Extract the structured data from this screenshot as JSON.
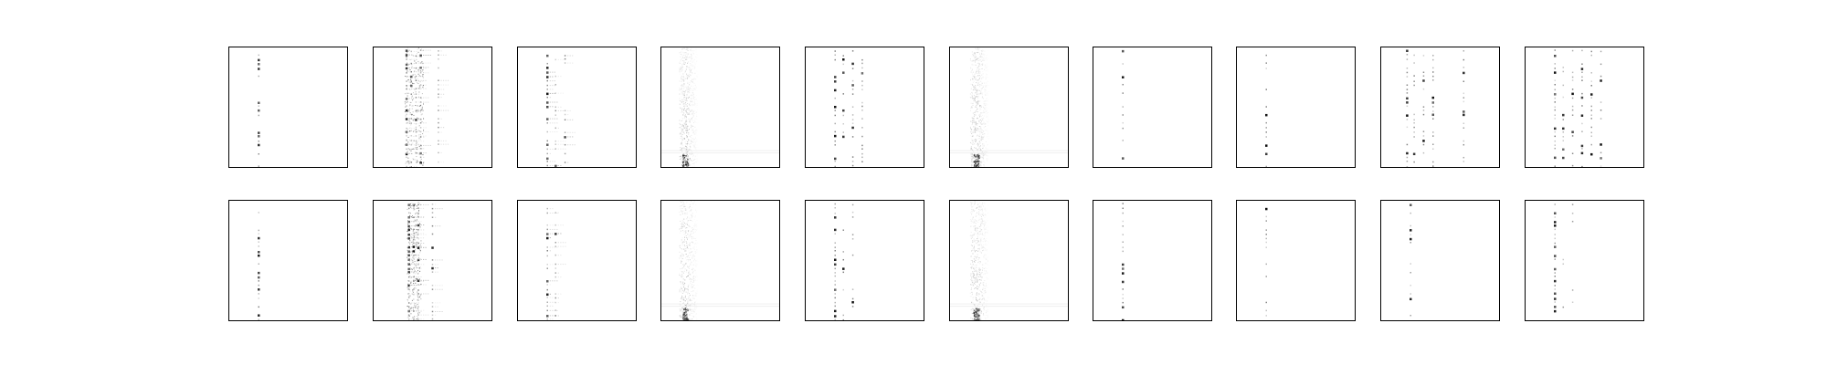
{
  "chart_data": {
    "type": "heatmap",
    "layout": {
      "rows": 2,
      "cols": 10
    },
    "colormap": "gray_r",
    "panels": [
      {
        "row": 0,
        "col": 0,
        "pattern": "sparse_single_column",
        "columns": [
          0.25
        ],
        "density": 0.35
      },
      {
        "row": 0,
        "col": 1,
        "pattern": "dense_multi_column",
        "columns": [
          0.28,
          0.32,
          0.36,
          0.4,
          0.55
        ],
        "density": 0.75
      },
      {
        "row": 0,
        "col": 2,
        "pattern": "sparse_single_column_with_tails",
        "columns": [
          0.25,
          0.32,
          0.4
        ],
        "density": 0.45
      },
      {
        "row": 0,
        "col": 3,
        "pattern": "noise_band",
        "columns": [
          0.2
        ],
        "density": 0.9
      },
      {
        "row": 0,
        "col": 4,
        "pattern": "multi_column_dots",
        "columns": [
          0.25,
          0.32,
          0.4,
          0.48
        ],
        "density": 0.55
      },
      {
        "row": 0,
        "col": 5,
        "pattern": "noise_band",
        "columns": [
          0.22
        ],
        "density": 0.95
      },
      {
        "row": 0,
        "col": 6,
        "pattern": "sparse_single_column",
        "columns": [
          0.25
        ],
        "density": 0.3
      },
      {
        "row": 0,
        "col": 7,
        "pattern": "sparse_single_column",
        "columns": [
          0.25
        ],
        "density": 0.2
      },
      {
        "row": 0,
        "col": 8,
        "pattern": "multi_column_dots",
        "columns": [
          0.22,
          0.28,
          0.36,
          0.44,
          0.7
        ],
        "density": 0.5
      },
      {
        "row": 0,
        "col": 9,
        "pattern": "multi_column_dots",
        "columns": [
          0.25,
          0.32,
          0.4,
          0.48,
          0.56,
          0.64
        ],
        "density": 0.55
      },
      {
        "row": 1,
        "col": 0,
        "pattern": "sparse_single_column",
        "columns": [
          0.25
        ],
        "density": 0.35
      },
      {
        "row": 1,
        "col": 1,
        "pattern": "dense_multi_column",
        "columns": [
          0.3,
          0.34,
          0.38,
          0.5
        ],
        "density": 0.7
      },
      {
        "row": 1,
        "col": 2,
        "pattern": "sparse_single_column_with_tails",
        "columns": [
          0.25,
          0.32
        ],
        "density": 0.45
      },
      {
        "row": 1,
        "col": 3,
        "pattern": "noise_band",
        "columns": [
          0.2
        ],
        "density": 0.7
      },
      {
        "row": 1,
        "col": 4,
        "pattern": "multi_column_dots",
        "columns": [
          0.25,
          0.32,
          0.4
        ],
        "density": 0.5
      },
      {
        "row": 1,
        "col": 5,
        "pattern": "noise_band",
        "columns": [
          0.22
        ],
        "density": 0.75
      },
      {
        "row": 1,
        "col": 6,
        "pattern": "sparse_single_column",
        "columns": [
          0.25
        ],
        "density": 0.45
      },
      {
        "row": 1,
        "col": 7,
        "pattern": "sparse_single_column",
        "columns": [
          0.25
        ],
        "density": 0.2
      },
      {
        "row": 1,
        "col": 8,
        "pattern": "sparse_single_column",
        "columns": [
          0.25
        ],
        "density": 0.25
      },
      {
        "row": 1,
        "col": 9,
        "pattern": "multi_column_dots",
        "columns": [
          0.25,
          0.32,
          0.4
        ],
        "density": 0.35
      }
    ]
  }
}
